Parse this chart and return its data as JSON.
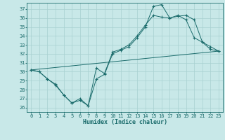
{
  "xlabel": "Humidex (Indice chaleur)",
  "bg_color": "#c8e8e8",
  "line_color": "#1a6b6b",
  "grid_color": "#a8d0d0",
  "xlim": [
    -0.5,
    23.5
  ],
  "ylim": [
    25.5,
    37.7
  ],
  "yticks": [
    26,
    27,
    28,
    29,
    30,
    31,
    32,
    33,
    34,
    35,
    36,
    37
  ],
  "xticks": [
    0,
    1,
    2,
    3,
    4,
    5,
    6,
    7,
    8,
    9,
    10,
    11,
    12,
    13,
    14,
    15,
    16,
    17,
    18,
    19,
    20,
    21,
    22,
    23
  ],
  "line1_x": [
    0,
    1,
    2,
    3,
    4,
    5,
    6,
    7,
    8,
    9,
    10,
    11,
    12,
    13,
    14,
    15,
    16,
    17,
    18,
    19,
    20,
    21,
    22,
    23
  ],
  "line1_y": [
    30.2,
    30.0,
    29.2,
    28.6,
    27.4,
    26.5,
    27.0,
    26.2,
    30.4,
    29.8,
    32.2,
    32.5,
    33.0,
    34.0,
    35.2,
    36.3,
    36.1,
    36.0,
    36.3,
    35.8,
    33.8,
    33.3,
    32.5,
    32.3
  ],
  "line2_x": [
    0,
    1,
    2,
    3,
    4,
    5,
    6,
    7,
    8,
    9,
    10,
    11,
    12,
    13,
    14,
    15,
    16,
    17,
    18,
    19,
    20,
    21,
    22,
    23
  ],
  "line2_y": [
    30.2,
    30.0,
    29.2,
    28.5,
    27.4,
    26.5,
    26.8,
    26.2,
    29.2,
    29.7,
    32.0,
    32.4,
    32.8,
    33.8,
    35.0,
    37.3,
    37.5,
    36.0,
    36.2,
    36.3,
    35.8,
    33.3,
    32.8,
    32.3
  ],
  "line3_x": [
    0,
    23
  ],
  "line3_y": [
    30.2,
    32.3
  ]
}
